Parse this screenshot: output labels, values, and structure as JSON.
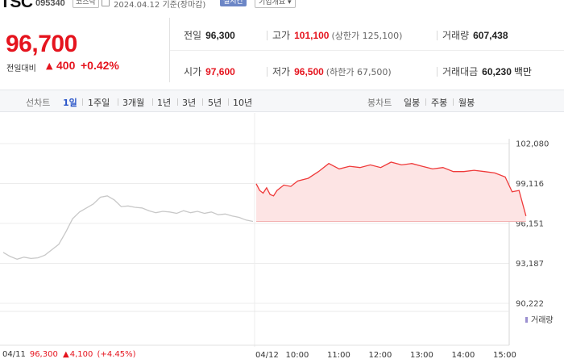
{
  "header": {
    "ticker": "TSC",
    "code": "095340",
    "market": "코스닥",
    "date": "2024.04.12",
    "basis": "기준(장마감)",
    "realtime_label": "실시간",
    "company_info_label": "기업개요",
    "dropdown_glyph": "▾"
  },
  "price": {
    "current": "96,700",
    "change_label": "전일대비",
    "direction_glyph": "▲",
    "change": "400",
    "change_pct": "+0.42%"
  },
  "stats": {
    "prev_close": {
      "label": "전일",
      "value": "96,300"
    },
    "high": {
      "label": "고가",
      "value": "101,100",
      "sub": "(상한가 125,100)"
    },
    "volume": {
      "label": "거래량",
      "value": "607,438"
    },
    "open": {
      "label": "시가",
      "value": "97,600"
    },
    "low": {
      "label": "저가",
      "value": "96,500",
      "sub": "(하한가 67,500)"
    },
    "trade_value": {
      "label": "거래대금",
      "value": "60,230",
      "unit": "백만"
    }
  },
  "toolbar": {
    "line_chart_label": "선차트",
    "periods": [
      "1일",
      "1주일",
      "3개월",
      "1년",
      "3년",
      "5년",
      "10년"
    ],
    "active_period": "1일",
    "candle_chart_label": "봉차트",
    "candles": [
      "일봉",
      "주봉",
      "월봉"
    ]
  },
  "chart_data": {
    "type": "line",
    "y_ticks": [
      "102,080",
      "99,116",
      "96,151",
      "93,187",
      "90,222"
    ],
    "ylim": [
      90222,
      102080
    ],
    "x_ticks": [
      "04/11",
      "04/12",
      "10:00",
      "11:00",
      "12:00",
      "13:00",
      "14:00",
      "15:00"
    ],
    "reference_price": 96300,
    "prev_day_series": {
      "date": "04/11",
      "values": [
        94000,
        93700,
        93500,
        93650,
        93550,
        93600,
        93800,
        94200,
        94600,
        95500,
        96500,
        97000,
        97300,
        97600,
        98100,
        98200,
        97900,
        97400,
        97450,
        97350,
        97300,
        97100,
        96950,
        97050,
        97000,
        96900,
        97100,
        96950,
        97050,
        96900,
        97000,
        96800,
        96850,
        96700,
        96600,
        96400,
        96300
      ]
    },
    "today_series": {
      "date": "04/12",
      "times": [
        "09:00",
        "09:05",
        "09:10",
        "09:15",
        "09:20",
        "09:25",
        "09:30",
        "09:40",
        "09:50",
        "10:00",
        "10:15",
        "10:30",
        "10:45",
        "11:00",
        "11:15",
        "11:30",
        "11:45",
        "12:00",
        "12:15",
        "12:30",
        "12:45",
        "13:00",
        "13:15",
        "13:30",
        "13:45",
        "14:00",
        "14:15",
        "14:30",
        "14:45",
        "15:00",
        "15:10",
        "15:20",
        "15:30"
      ],
      "values": [
        99100,
        98600,
        98400,
        98800,
        98300,
        98200,
        98600,
        99000,
        98900,
        99300,
        99500,
        100000,
        100600,
        100200,
        100400,
        100300,
        100500,
        100300,
        100700,
        100500,
        100600,
        100400,
        100200,
        100300,
        100000,
        100000,
        100100,
        100000,
        99900,
        99600,
        98500,
        98600,
        96700
      ]
    },
    "volume_label": "거래량",
    "prev_close_readout": {
      "date": "04/11",
      "price": "96,300",
      "direction_glyph": "▲",
      "change": "4,100",
      "change_pct": "(+4.45%)"
    },
    "colors": {
      "prev_day_line": "#c8c8c8",
      "today_line": "#ef3a3a",
      "today_fill": "#fde4e4",
      "volume_bar": "#9b8fd0",
      "grid": "#ececec"
    }
  }
}
